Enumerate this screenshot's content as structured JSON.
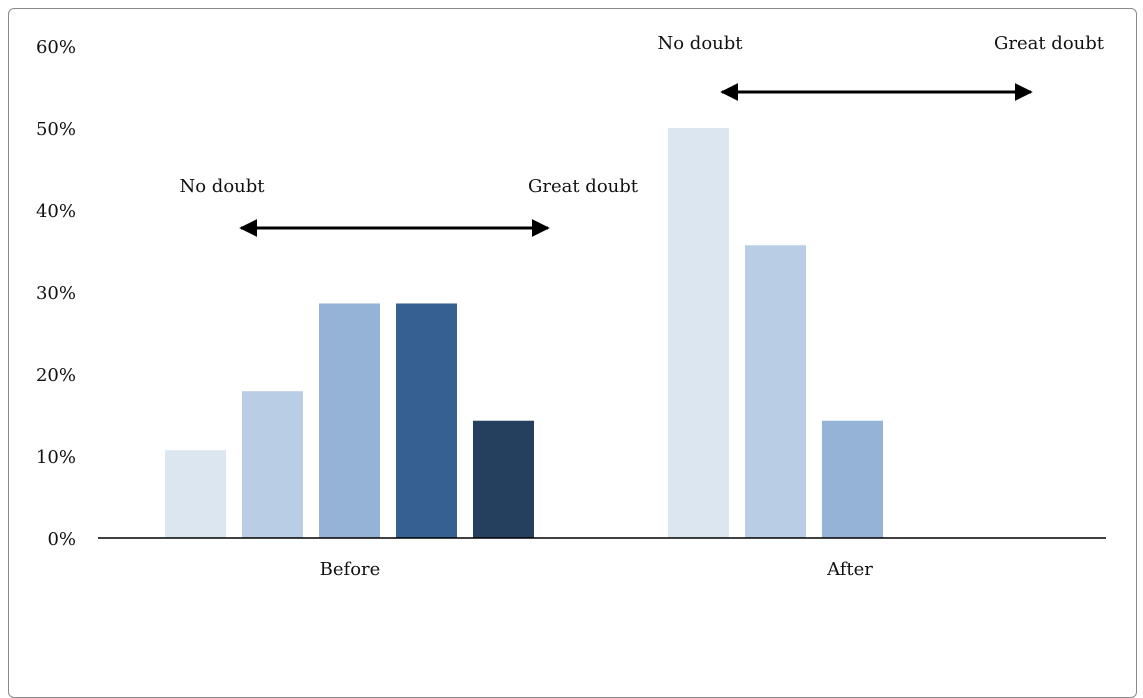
{
  "chart_data": {
    "type": "bar",
    "title": "",
    "xlabel": "",
    "ylabel": "",
    "ylim": [
      0,
      60
    ],
    "y_ticks": [
      "0%",
      "10%",
      "20%",
      "30%",
      "40%",
      "50%",
      "60%"
    ],
    "y_tick_values": [
      0,
      10,
      20,
      30,
      40,
      50,
      60
    ],
    "grid": false,
    "legend": "none",
    "categories": [
      "Before",
      "After"
    ],
    "series": [
      {
        "color": "#dce6f1",
        "values": [
          10.7,
          50.0
        ]
      },
      {
        "color": "#b9cde4",
        "values": [
          17.9,
          35.7
        ]
      },
      {
        "color": "#95b3d7",
        "values": [
          28.6,
          14.3
        ]
      },
      {
        "color": "#366092",
        "values": [
          28.6,
          null
        ]
      },
      {
        "color": "#253f5f",
        "values": [
          14.3,
          null
        ]
      }
    ],
    "annotations": [
      {
        "group": "Before",
        "left_text": "No doubt",
        "right_text": "Great doubt",
        "arrow": "double-headed"
      },
      {
        "group": "After",
        "left_text": "No doubt",
        "right_text": "Great doubt",
        "arrow": "double-headed"
      }
    ]
  }
}
